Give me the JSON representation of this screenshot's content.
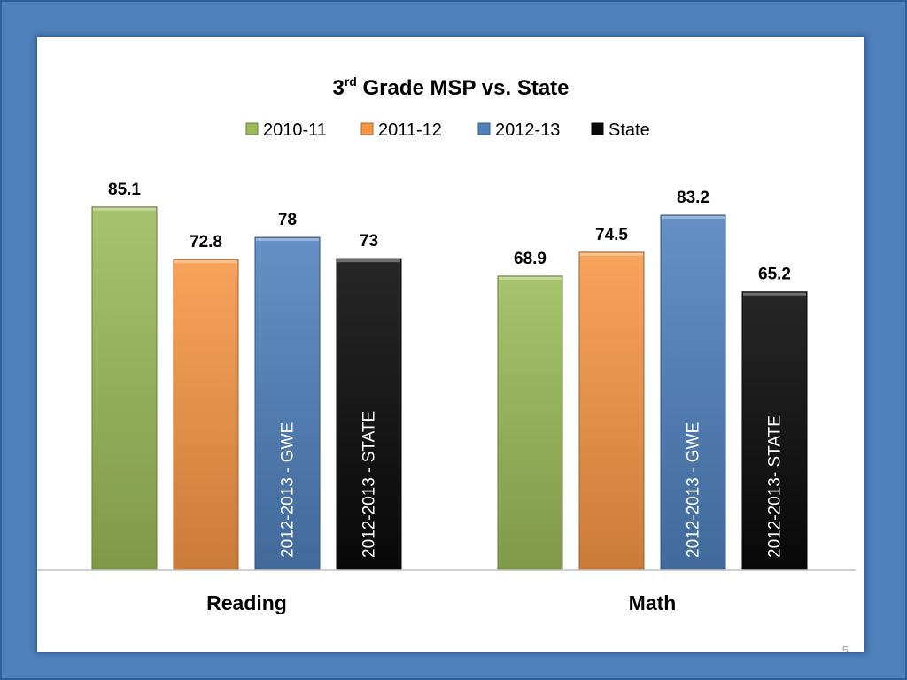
{
  "slide": {
    "page_number": "5"
  },
  "chart_data": {
    "type": "bar",
    "title": {
      "base": "3",
      "superscript": "rd",
      "rest": " Grade MSP  vs. State"
    },
    "categories": [
      "Reading",
      "Math"
    ],
    "series": [
      {
        "name": "2010-11",
        "color": "#9bbb59",
        "values": [
          85.1,
          68.9
        ],
        "labels": [
          "85.1",
          "68.9"
        ]
      },
      {
        "name": "2011-12",
        "color": "#f79646",
        "values": [
          72.8,
          74.5
        ],
        "labels": [
          "72.8",
          "74.5"
        ]
      },
      {
        "name": "2012-13",
        "color": "#4f81bd",
        "values": [
          78,
          83.2
        ],
        "labels": [
          "78",
          "83.2"
        ]
      },
      {
        "name": "State",
        "color": "#0a0a0a",
        "values": [
          73,
          65.2
        ],
        "labels": [
          "73",
          "65.2"
        ]
      }
    ],
    "bar_annotations": [
      {
        "category": 0,
        "series": 2,
        "text": "2012-2013 - GWE"
      },
      {
        "category": 0,
        "series": 3,
        "text": "2012-2013 - STATE"
      },
      {
        "category": 1,
        "series": 2,
        "text": "2012-2013 - GWE"
      },
      {
        "category": 1,
        "series": 3,
        "text": "2012-2013- STATE"
      }
    ],
    "legend_position": "top",
    "ylim": [
      0,
      100
    ],
    "grid": false
  }
}
